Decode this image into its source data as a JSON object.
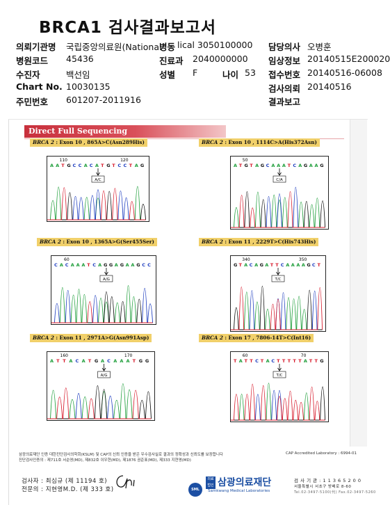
{
  "report_title": "BRCA1 검사결과보고서",
  "header": {
    "left": [
      {
        "label": "의뢰기관명",
        "value": "국립중앙의료원(National"
      },
      {
        "label": "병원코드",
        "value": "45436"
      },
      {
        "label": "수진자",
        "value": "백선임"
      },
      {
        "label": "Chart No.",
        "value": "10030135"
      },
      {
        "label": "주민번호",
        "value": "601207-2011916"
      }
    ],
    "mid": [
      {
        "label": "병동",
        "value": "lical 3050100000"
      },
      {
        "label": "진료과",
        "value": "2040000000"
      },
      {
        "label": "성별",
        "value": "F"
      },
      {
        "label": "나이",
        "value": "53"
      }
    ],
    "right": [
      {
        "label": "담당의사",
        "value": "오병훈"
      },
      {
        "label": "임상정보",
        "value": "20140515E200020"
      },
      {
        "label": "접수번호",
        "value": "20140516-06008"
      },
      {
        "label": "검사의뢰",
        "value": "20140516"
      },
      {
        "label": "결과보고",
        "value": ""
      }
    ]
  },
  "section_banner": "Direct Full Sequencing",
  "panels": [
    {
      "gene": "BRCA 2",
      "detail": " : Exon 10 , 865A>C(Asn289His)",
      "pos1": "110",
      "pos2": "120",
      "seq": "AATGCCACATGTCCTAG",
      "call": "A/C"
    },
    {
      "gene": "BRCA 2",
      "detail": " : Exon 10 , 1114C>A(His372Asn)",
      "pos1": "50",
      "pos2": "",
      "seq": "ATGTAGCAAATCAGAAG",
      "call": "C/A"
    },
    {
      "gene": "BRCA 2",
      "detail": " : Exon 10 , 1365A>G(Ser455Ser)",
      "pos1": "60",
      "pos2": "",
      "seq": "CACAAATCAGGAGAAGCC",
      "call": "A/G"
    },
    {
      "gene": "BRCA 2",
      "detail": " : Exon 11 , 2229T>C(His743His)",
      "pos1": "340",
      "pos2": "350",
      "seq": "GTACAGATTCAAAAGCT",
      "call": "T/C"
    },
    {
      "gene": "BRCA 2",
      "detail": " : Exon 11 , 2971A>G(Asn991Asp)",
      "pos1": "160",
      "pos2": "170",
      "seq": "ATTACATGACAAATGG",
      "call": "A/G"
    },
    {
      "gene": "BRCA 2",
      "detail": " : Exon 17 , 7806-14T>C(Int16)",
      "pos1": "60",
      "pos2": "70",
      "seq": "TATTCTACTTTTTATTG",
      "call": "T/C"
    }
  ],
  "footer": {
    "cert_line1": "삼광의료재단 인증 대한진단검사의학회(KSLM) 및 CAP의 신뢰 인증을 받은 우수검사실로 결과의 정확성과 신뢰도를 보장합니다",
    "cert_line2": "진단검사인증의 : 제711호 서순영(MD), 제832호 이우현(MD), 제1876 권준표(MD), 제333 지현영(MD)",
    "cap": "CAP Accredited Laboratory : 6994-01",
    "examiner": "검사자 : 최심규 (제 11194 호)",
    "doctor": "전문의 : 지현영M.D. (제 333 호)",
    "signature": "Chi",
    "org_tag_top": "의료",
    "org_tag_bottom": "법인",
    "org_name": "삼광의료재단",
    "org_en": "Samkwang Medical Laboratories",
    "seal_text": "SML",
    "reg": "검 사 기 관 : 1 1 3 6 5 2 0 0",
    "address": "서울특별시 서초구 방배로 8-60",
    "phone": "Tel.02-3497-5100(代) Fax.02-3497-5260"
  },
  "colors": {
    "A": "#1e9e3a",
    "C": "#1c3cbf",
    "G": "#111111",
    "T": "#d7192a",
    "banner": "#c8303c",
    "label_bg": "#f1d06a"
  }
}
